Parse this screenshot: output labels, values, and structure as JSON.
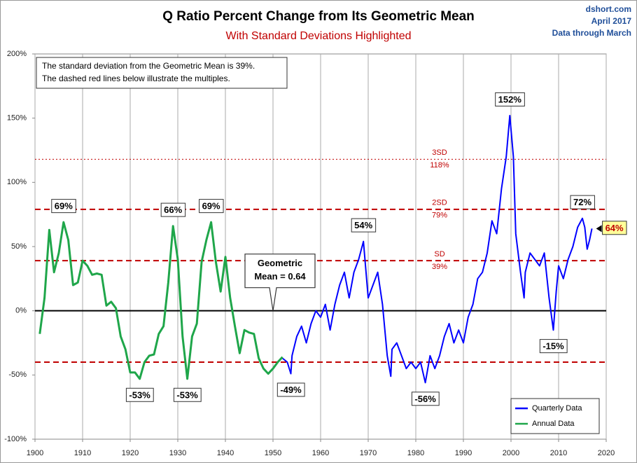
{
  "chart_data": {
    "type": "line",
    "title": "Q Ratio Percent Change from Its Geometric Mean",
    "subtitle": "With Standard Deviations Highlighted",
    "source": [
      "dshort.com",
      "April 2017",
      "Data through March"
    ],
    "note": [
      "The standard deviation from the Geometric Mean is 39%.",
      "The dashed red lines below illustrate the multiples."
    ],
    "callout": {
      "text": [
        "Geometric",
        "Mean = 0.64"
      ],
      "x": 1950,
      "y": 0
    },
    "xlim": [
      1900,
      2020
    ],
    "xticks": [
      1900,
      1910,
      1920,
      1930,
      1940,
      1950,
      1960,
      1970,
      1980,
      1990,
      2000,
      2010,
      2020
    ],
    "ylim": [
      -100,
      200
    ],
    "yticks": [
      {
        "value": -100,
        "label": "-100%"
      },
      {
        "value": -50,
        "label": "-50%"
      },
      {
        "value": 0,
        "label": "0%"
      },
      {
        "value": 50,
        "label": "50%"
      },
      {
        "value": 100,
        "label": "100%"
      },
      {
        "value": 150,
        "label": "150%"
      },
      {
        "value": 200,
        "label": "200%"
      }
    ],
    "grid": "x",
    "zero_line": true,
    "legend": "lower right",
    "reference_lines": [
      {
        "value": 118,
        "label": [
          "3SD",
          "118%"
        ],
        "style": "dotted",
        "color": "#c00000"
      },
      {
        "value": 79,
        "label": [
          "2SD",
          "79%"
        ],
        "style": "dashed",
        "color": "#c00000"
      },
      {
        "value": 39,
        "label": [
          "SD",
          "39%"
        ],
        "style": "dashed",
        "color": "#c00000"
      },
      {
        "value": -40,
        "style": "dashed",
        "color": "#c00000"
      }
    ],
    "series": [
      {
        "name": "Quarterly Data",
        "color": "#0000ff",
        "x": [
          1952,
          1953,
          1953.75,
          1954,
          1955,
          1956,
          1957,
          1958,
          1959,
          1960,
          1961,
          1962,
          1963,
          1964,
          1965,
          1966,
          1967,
          1968,
          1969,
          1970,
          1971,
          1972,
          1973,
          1974,
          1974.75,
          1975,
          1976,
          1977,
          1978,
          1979,
          1980,
          1981,
          1982,
          1983,
          1984,
          1985,
          1986,
          1987,
          1988,
          1989,
          1990,
          1991,
          1992,
          1993,
          1994,
          1995,
          1996,
          1997,
          1998,
          1999,
          1999.75,
          2000.5,
          2001,
          2002,
          2002.75,
          2003,
          2004,
          2005,
          2006,
          2007,
          2008,
          2008.9,
          2009.5,
          2010,
          2011,
          2012,
          2013,
          2014,
          2015,
          2015.5,
          2016,
          2016.5,
          2017
        ],
        "values": [
          -37,
          -40,
          -49,
          -35,
          -20,
          -12,
          -25,
          -10,
          0,
          -5,
          5,
          -15,
          5,
          20,
          30,
          10,
          30,
          40,
          54,
          10,
          20,
          30,
          5,
          -35,
          -51,
          -30,
          -25,
          -35,
          -45,
          -40,
          -45,
          -40,
          -56,
          -35,
          -45,
          -35,
          -20,
          -10,
          -25,
          -15,
          -25,
          -5,
          5,
          25,
          30,
          45,
          70,
          60,
          95,
          120,
          152,
          120,
          60,
          30,
          10,
          30,
          45,
          40,
          35,
          45,
          10,
          -15,
          15,
          35,
          25,
          40,
          50,
          65,
          72,
          65,
          48,
          55,
          64
        ]
      },
      {
        "name": "Annual Data",
        "color": "#1fa64a",
        "x": [
          1901,
          1902,
          1903,
          1904,
          1905,
          1906,
          1907,
          1908,
          1909,
          1910,
          1911,
          1912,
          1913,
          1914,
          1915,
          1916,
          1917,
          1918,
          1919,
          1920,
          1921,
          1922,
          1923,
          1924,
          1925,
          1926,
          1927,
          1928,
          1929,
          1930,
          1931,
          1932,
          1933,
          1934,
          1935,
          1936,
          1937,
          1938,
          1939,
          1940,
          1941,
          1942,
          1943,
          1944,
          1945,
          1946,
          1947,
          1948,
          1949,
          1950,
          1951,
          1952
        ],
        "values": [
          -18,
          10,
          63,
          30,
          45,
          69,
          55,
          20,
          22,
          39,
          35,
          28,
          29,
          28,
          4,
          7,
          2,
          -20,
          -30,
          -48,
          -48,
          -53,
          -40,
          -35,
          -34,
          -18,
          -12,
          22,
          66,
          40,
          -20,
          -53,
          -20,
          -10,
          38,
          55,
          69,
          38,
          15,
          42,
          10,
          -12,
          -33,
          -15,
          -17,
          -18,
          -37,
          -45,
          -49,
          -45,
          -40,
          -36
        ]
      }
    ],
    "annotations": [
      {
        "text": "69%",
        "x": 1906,
        "y": 69
      },
      {
        "text": "-53%",
        "x": 1922,
        "y": -53
      },
      {
        "text": "66%",
        "x": 1929,
        "y": 66
      },
      {
        "text": "-53%",
        "x": 1932,
        "y": -53
      },
      {
        "text": "69%",
        "x": 1937,
        "y": 69
      },
      {
        "text": "-49%",
        "x": 1953.75,
        "y": -49
      },
      {
        "text": "54%",
        "x": 1969,
        "y": 54
      },
      {
        "text": "-56%",
        "x": 1982,
        "y": -56
      },
      {
        "text": "152%",
        "x": 1999.75,
        "y": 152
      },
      {
        "text": "-15%",
        "x": 2008.9,
        "y": -15
      },
      {
        "text": "72%",
        "x": 2015,
        "y": 72
      },
      {
        "text": "64%",
        "x": 2017,
        "y": 64,
        "highlight": true
      }
    ]
  }
}
